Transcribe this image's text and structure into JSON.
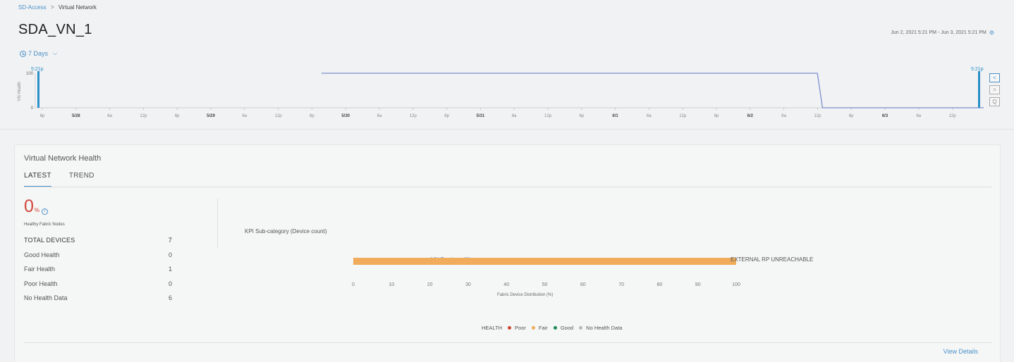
{
  "breadcrumb": {
    "root": "SD-Access",
    "separator": ">",
    "current": "Virtual Network"
  },
  "page": {
    "title": "SDA_VN_1",
    "date_range": "Jun 2, 2021 5:21 PM - Jun 3, 2021 5:21 PM"
  },
  "time_selector": {
    "label": "7 Days"
  },
  "timeline": {
    "y_axis_label": "VN Health",
    "y_ticks": [
      "100",
      "0"
    ],
    "start_marker": "5:21p",
    "end_marker": "5:21p",
    "ticks": [
      {
        "label": "6p",
        "bold": false
      },
      {
        "label": "5/28",
        "bold": true
      },
      {
        "label": "6a",
        "bold": false
      },
      {
        "label": "12p",
        "bold": false
      },
      {
        "label": "6p",
        "bold": false
      },
      {
        "label": "5/29",
        "bold": true
      },
      {
        "label": "6a",
        "bold": false
      },
      {
        "label": "12p",
        "bold": false
      },
      {
        "label": "6p",
        "bold": false
      },
      {
        "label": "5/30",
        "bold": true
      },
      {
        "label": "6a",
        "bold": false
      },
      {
        "label": "12p",
        "bold": false
      },
      {
        "label": "6p",
        "bold": false
      },
      {
        "label": "5/31",
        "bold": true
      },
      {
        "label": "6a",
        "bold": false
      },
      {
        "label": "12p",
        "bold": false
      },
      {
        "label": "6p",
        "bold": false
      },
      {
        "label": "6/1",
        "bold": true
      },
      {
        "label": "6a",
        "bold": false
      },
      {
        "label": "12p",
        "bold": false
      },
      {
        "label": "6p",
        "bold": false
      },
      {
        "label": "6/2",
        "bold": true
      },
      {
        "label": "6a",
        "bold": false
      },
      {
        "label": "12p",
        "bold": false
      },
      {
        "label": "6p",
        "bold": false
      },
      {
        "label": "6/3",
        "bold": true
      },
      {
        "label": "6a",
        "bold": false
      },
      {
        "label": "12p",
        "bold": false
      }
    ],
    "series": [
      {
        "t": 8.25,
        "v": 100
      },
      {
        "t": 22.9,
        "v": 100
      },
      {
        "t": 23.05,
        "v": 0
      },
      {
        "t": 28.6,
        "v": 0
      }
    ],
    "controls": [
      "<",
      ">",
      "Q"
    ],
    "colors": {
      "line": "#7b8fce",
      "marker": "#2b8fc9"
    }
  },
  "panel": {
    "title": "Virtual Network Health",
    "tabs": [
      "LATEST",
      "TREND"
    ],
    "score_value": "0",
    "score_unit": "%",
    "score_info_icon": "i",
    "score_label": "Healthy Fabric Nodes",
    "stats": [
      {
        "label": "TOTAL DEVICES",
        "value": "7"
      },
      {
        "label": "Good Health",
        "value": "0"
      },
      {
        "label": "Fair Health",
        "value": "1"
      },
      {
        "label": "Poor Health",
        "value": "0"
      },
      {
        "label": "No Health Data",
        "value": "6"
      }
    ],
    "kpi_title": "KPI Sub-category (Device count)",
    "view_details": "View Details"
  },
  "chart_data": {
    "type": "bar",
    "orientation": "horizontal",
    "categories": [
      "VN Services (1)"
    ],
    "values": [
      100
    ],
    "annotations": [
      "EXTERNAL RP UNREACHABLE"
    ],
    "xlabel": "Fabric Device Distribution (%)",
    "xlim": [
      0,
      100
    ],
    "x_ticks": [
      "0",
      "10",
      "20",
      "30",
      "40",
      "50",
      "60",
      "70",
      "80",
      "90",
      "100"
    ],
    "bar_color": "#f0ac5a",
    "legend_title": "HEALTH",
    "legend": [
      {
        "label": "Poor",
        "color": "#c8472e"
      },
      {
        "label": "Fair",
        "color": "#f0ac5a"
      },
      {
        "label": "Good",
        "color": "#1a8a56"
      },
      {
        "label": "No Health Data",
        "color": "#b8b8b8"
      }
    ]
  }
}
